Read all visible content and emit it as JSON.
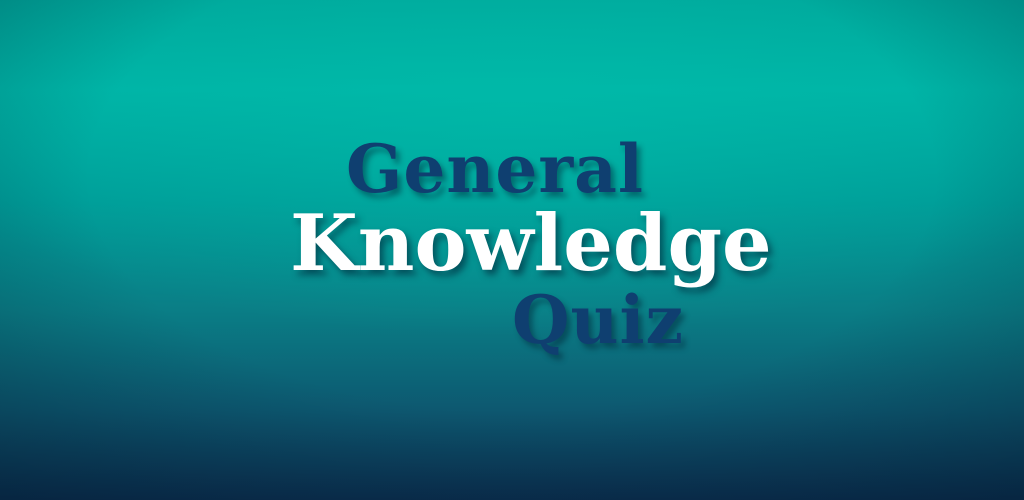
{
  "title": {
    "line1": "General",
    "line2": "Knowledge",
    "line3": "Quiz"
  },
  "colors": {
    "accent_dark_blue": "#0f3f70",
    "title_white": "#ffffff",
    "background_teal": "#00b3a6",
    "background_navy": "#0b2f4f"
  }
}
